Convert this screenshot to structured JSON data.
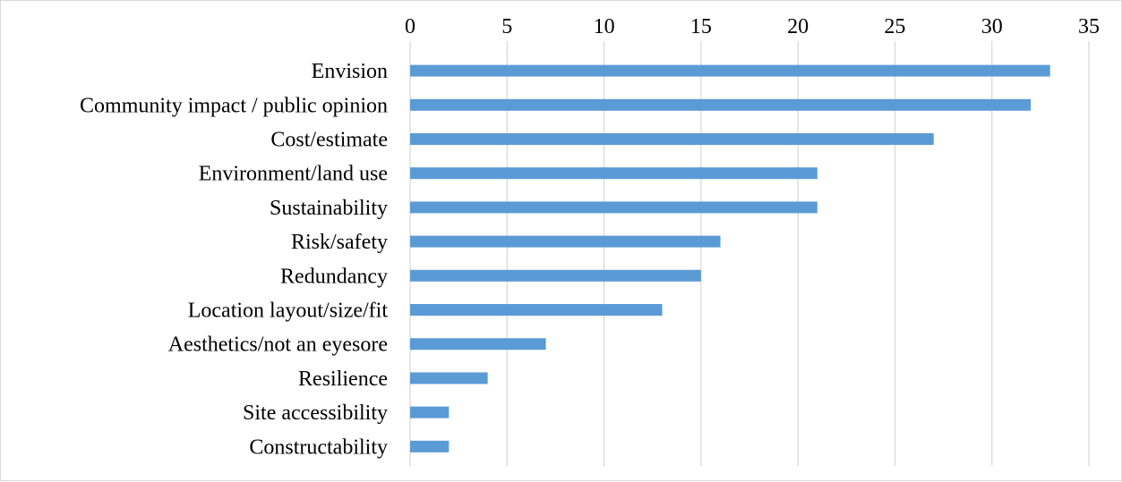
{
  "chart_data": {
    "type": "bar",
    "orientation": "horizontal",
    "title": "",
    "xlabel": "",
    "ylabel": "",
    "xlim": [
      0,
      35
    ],
    "x_ticks": [
      0,
      5,
      10,
      15,
      20,
      25,
      30,
      35
    ],
    "x_axis_position": "top",
    "grid": true,
    "legend": "none",
    "bar_color": "#5b9bd5",
    "categories": [
      "Envision",
      "Community impact / public opinion",
      "Cost/estimate",
      "Environment/land use",
      "Sustainability",
      "Risk/safety",
      "Redundancy",
      "Location layout/size/fit",
      "Aesthetics/not an eyesore",
      "Resilience",
      "Site accessibility",
      "Constructability"
    ],
    "values": [
      33,
      32,
      27,
      21,
      21,
      16,
      15,
      13,
      7,
      4,
      2,
      2
    ]
  }
}
